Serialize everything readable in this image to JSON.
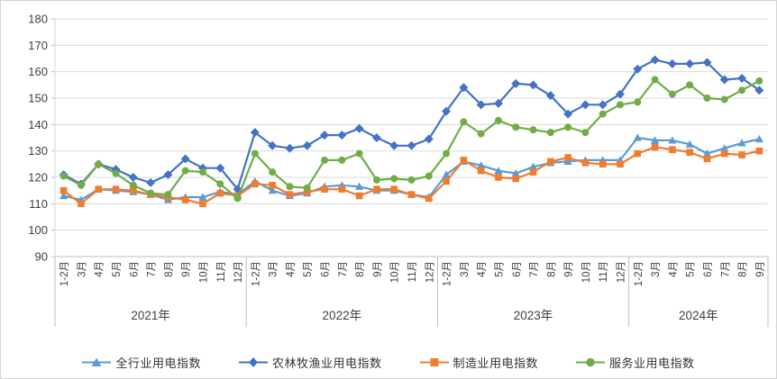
{
  "chart_data": {
    "type": "line",
    "title": "",
    "grid": true,
    "legend_position": "bottom",
    "y_axis": {
      "min": 90,
      "max": 180,
      "step": 10,
      "tick_labels": [
        "90",
        "100",
        "110",
        "120",
        "130",
        "140",
        "150",
        "160",
        "170",
        "180"
      ]
    },
    "x_axis": {
      "month_labels": [
        "1-2月",
        "3月",
        "4月",
        "5月",
        "6月",
        "7月",
        "8月",
        "9月",
        "10月",
        "11月",
        "12月",
        "1-2月",
        "3月",
        "4月",
        "5月",
        "6月",
        "7月",
        "8月",
        "9月",
        "10月",
        "11月",
        "12月",
        "1-2月",
        "3月",
        "4月",
        "5月",
        "6月",
        "7月",
        "8月",
        "9月",
        "10月",
        "11月",
        "12月",
        "1-2月",
        "3月",
        "4月",
        "5月",
        "6月",
        "7月",
        "8月",
        "9月"
      ],
      "year_groups": [
        {
          "label": "2021年",
          "count": 11
        },
        {
          "label": "2022年",
          "count": 11
        },
        {
          "label": "2023年",
          "count": 11
        },
        {
          "label": "2024年",
          "count": 8
        }
      ]
    },
    "series": [
      {
        "name": "全行业用电指数",
        "marker": "triangle",
        "color": "#5B9BD5",
        "values": [
          113,
          111.5,
          115.5,
          115,
          114.5,
          113.5,
          111.5,
          112.5,
          112.5,
          114.5,
          113.5,
          118.5,
          115,
          113,
          114,
          116.5,
          117,
          116.5,
          115,
          115,
          113.5,
          112.5,
          121,
          126,
          124.5,
          122.5,
          121.5,
          124,
          125.5,
          126,
          126.5,
          126.5,
          126.5,
          135,
          134,
          134,
          132.5,
          129,
          131,
          133,
          134.5
        ]
      },
      {
        "name": "农林牧渔业用电指数",
        "marker": "diamond",
        "color": "#4472C4",
        "values": [
          121,
          117.5,
          125,
          123,
          120,
          118,
          121,
          127,
          123.5,
          123.5,
          115.5,
          137,
          132,
          131,
          132,
          136,
          136,
          138.5,
          135,
          132,
          132,
          134.5,
          145,
          154,
          147.5,
          148,
          155.5,
          155,
          151,
          144,
          147.5,
          147.5,
          151.5,
          161,
          164.5,
          163,
          163,
          163.5,
          157,
          157.5,
          153
        ]
      },
      {
        "name": "制造业用电指数",
        "marker": "square",
        "color": "#ED7D31",
        "values": [
          115,
          110,
          115.5,
          115.5,
          115,
          113.5,
          112.5,
          111.5,
          110,
          114,
          113,
          117.5,
          117,
          113.5,
          114.5,
          115.5,
          115.5,
          113,
          115.5,
          115.5,
          113.5,
          112,
          118.5,
          126.5,
          122.5,
          120,
          119.5,
          122,
          126,
          127.5,
          125.5,
          125,
          125,
          129,
          131.5,
          130.5,
          129.5,
          127,
          129,
          128.5,
          130
        ]
      },
      {
        "name": "服务业用电指数",
        "marker": "circle",
        "color": "#70AD47",
        "values": [
          120.5,
          117,
          125,
          121.5,
          117,
          114,
          113.5,
          122.5,
          122,
          117.5,
          112,
          129,
          122,
          116.5,
          116,
          126.5,
          126.5,
          129,
          119,
          119.5,
          119,
          120.5,
          129,
          141,
          136.5,
          141.5,
          139,
          138,
          137,
          139,
          137,
          144,
          147.5,
          148.5,
          157,
          151.5,
          155,
          150,
          149.5,
          153,
          156.5
        ]
      }
    ],
    "colors": {
      "gridline": "#d9d9d9",
      "axis_line": "#bfbfbf",
      "axis_text": "#404040"
    }
  }
}
